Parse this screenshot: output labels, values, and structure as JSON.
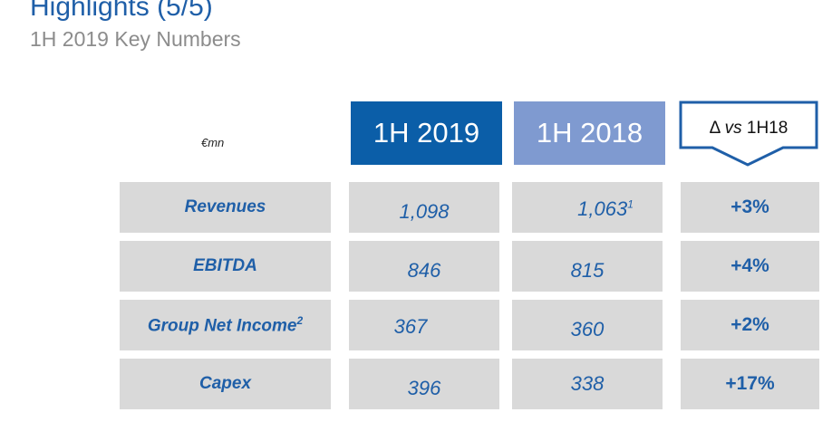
{
  "header": {
    "title": "Highlights (5/5)",
    "subtitle": "1H 2019 Key Numbers"
  },
  "table": {
    "unit": "€mn",
    "columns": {
      "current": "1H 2019",
      "prior": "1H 2018",
      "delta_symbol": "Δ",
      "delta_vs": "vs",
      "delta_ref": "1H18"
    },
    "rows": [
      {
        "label": "Revenues",
        "label_sup": "",
        "current": "1,098",
        "prior": "1,063",
        "prior_sup": "1",
        "delta": "+3%"
      },
      {
        "label": "EBITDA",
        "label_sup": "",
        "current": "846",
        "prior": "815",
        "prior_sup": "",
        "delta": "+4%"
      },
      {
        "label": "Group Net Income",
        "label_sup": "2",
        "current": "367",
        "prior": "360",
        "prior_sup": "",
        "delta": "+2%"
      },
      {
        "label": "Capex",
        "label_sup": "",
        "current": "396",
        "prior": "338",
        "prior_sup": "",
        "delta": "+17%"
      }
    ]
  },
  "colors": {
    "title": "#1f5fa8",
    "subtitle": "#8c8c8c",
    "header_current_bg": "#0b5ea8",
    "header_prior_bg": "#7f9ad0",
    "delta_border": "#1f5fa8",
    "row_bg": "#d9d9d9",
    "value_text": "#1f5fa8"
  }
}
